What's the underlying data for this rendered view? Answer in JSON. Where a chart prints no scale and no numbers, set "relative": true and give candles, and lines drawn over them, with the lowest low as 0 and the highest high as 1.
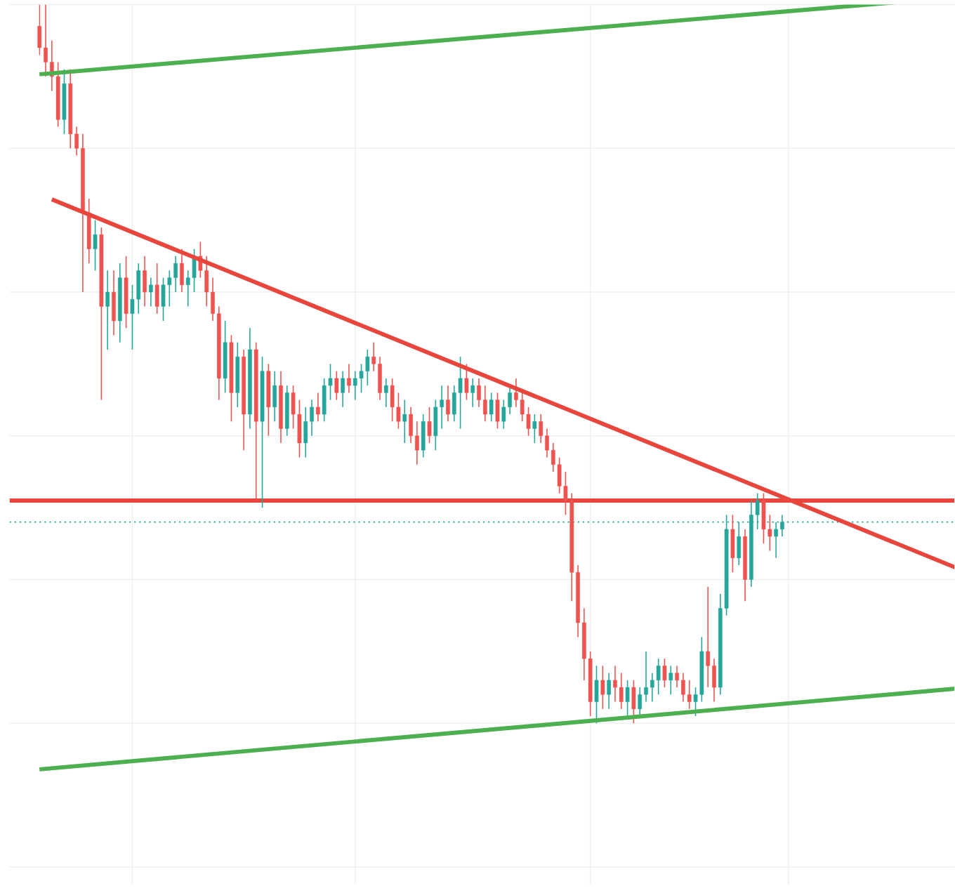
{
  "chart_data": {
    "type": "candlestick",
    "relative": true,
    "grid": true,
    "tick_labels": false,
    "categories": [
      null,
      null,
      null,
      null,
      null,
      null,
      null,
      null,
      null,
      null,
      null,
      null,
      null,
      null,
      null,
      null,
      null,
      null,
      null,
      null,
      null,
      null,
      null,
      null,
      null,
      null,
      null,
      null,
      null,
      null,
      null,
      null,
      null,
      null,
      null,
      null,
      null,
      null,
      null,
      null,
      null,
      null,
      null,
      null,
      null,
      null,
      null,
      null,
      null,
      null,
      null,
      null,
      null,
      null,
      null,
      null,
      null,
      null,
      null,
      null,
      null,
      null,
      null,
      null,
      null,
      null,
      null,
      null,
      null,
      null,
      null,
      null,
      null,
      null,
      null,
      null,
      null,
      null,
      null,
      null,
      null,
      null,
      null,
      null,
      null,
      null,
      null,
      null,
      null,
      null,
      null,
      null,
      null,
      null,
      null,
      null,
      null,
      null,
      null,
      null,
      null,
      null,
      null,
      null,
      null,
      null,
      null,
      null,
      null,
      null,
      null,
      null,
      null,
      null,
      null,
      null,
      null,
      null,
      null,
      null,
      null
    ],
    "ohlc": [
      [
        0.97,
        1.0,
        0.93,
        0.94
      ],
      [
        0.94,
        1.0,
        0.9,
        0.92
      ],
      [
        0.92,
        0.95,
        0.88,
        0.9
      ],
      [
        0.9,
        0.92,
        0.83,
        0.84
      ],
      [
        0.84,
        0.91,
        0.82,
        0.89
      ],
      [
        0.89,
        0.91,
        0.8,
        0.82
      ],
      [
        0.82,
        0.83,
        0.79,
        0.8
      ],
      [
        0.8,
        0.82,
        0.6,
        0.71
      ],
      [
        0.71,
        0.73,
        0.64,
        0.66
      ],
      [
        0.66,
        0.7,
        0.63,
        0.68
      ],
      [
        0.68,
        0.69,
        0.45,
        0.58
      ],
      [
        0.58,
        0.63,
        0.52,
        0.6
      ],
      [
        0.6,
        0.63,
        0.54,
        0.56
      ],
      [
        0.56,
        0.64,
        0.53,
        0.62
      ],
      [
        0.62,
        0.65,
        0.55,
        0.57
      ],
      [
        0.57,
        0.61,
        0.52,
        0.59
      ],
      [
        0.59,
        0.64,
        0.57,
        0.63
      ],
      [
        0.63,
        0.65,
        0.58,
        0.6
      ],
      [
        0.6,
        0.62,
        0.58,
        0.61
      ],
      [
        0.61,
        0.64,
        0.57,
        0.58
      ],
      [
        0.58,
        0.62,
        0.56,
        0.61
      ],
      [
        0.61,
        0.63,
        0.58,
        0.62
      ],
      [
        0.62,
        0.65,
        0.6,
        0.64
      ],
      [
        0.64,
        0.66,
        0.6,
        0.61
      ],
      [
        0.61,
        0.63,
        0.58,
        0.62
      ],
      [
        0.62,
        0.66,
        0.6,
        0.65
      ],
      [
        0.65,
        0.67,
        0.62,
        0.63
      ],
      [
        0.63,
        0.65,
        0.58,
        0.6
      ],
      [
        0.6,
        0.62,
        0.56,
        0.57
      ],
      [
        0.57,
        0.58,
        0.45,
        0.48
      ],
      [
        0.48,
        0.56,
        0.46,
        0.53
      ],
      [
        0.53,
        0.54,
        0.42,
        0.46
      ],
      [
        0.46,
        0.53,
        0.44,
        0.51
      ],
      [
        0.51,
        0.52,
        0.38,
        0.43
      ],
      [
        0.43,
        0.55,
        0.41,
        0.52
      ],
      [
        0.52,
        0.53,
        0.31,
        0.42
      ],
      [
        0.42,
        0.51,
        0.3,
        0.49
      ],
      [
        0.49,
        0.5,
        0.4,
        0.44
      ],
      [
        0.44,
        0.49,
        0.42,
        0.47
      ],
      [
        0.47,
        0.49,
        0.39,
        0.41
      ],
      [
        0.41,
        0.47,
        0.4,
        0.46
      ],
      [
        0.46,
        0.47,
        0.41,
        0.43
      ],
      [
        0.43,
        0.45,
        0.37,
        0.39
      ],
      [
        0.39,
        0.44,
        0.37,
        0.42
      ],
      [
        0.42,
        0.45,
        0.4,
        0.44
      ],
      [
        0.44,
        0.46,
        0.42,
        0.43
      ],
      [
        0.43,
        0.48,
        0.42,
        0.47
      ],
      [
        0.47,
        0.5,
        0.45,
        0.48
      ],
      [
        0.48,
        0.49,
        0.45,
        0.46
      ],
      [
        0.46,
        0.49,
        0.44,
        0.48
      ],
      [
        0.48,
        0.5,
        0.46,
        0.47
      ],
      [
        0.47,
        0.49,
        0.45,
        0.48
      ],
      [
        0.48,
        0.5,
        0.46,
        0.49
      ],
      [
        0.49,
        0.52,
        0.47,
        0.51
      ],
      [
        0.51,
        0.53,
        0.49,
        0.5
      ],
      [
        0.5,
        0.51,
        0.45,
        0.46
      ],
      [
        0.46,
        0.48,
        0.44,
        0.47
      ],
      [
        0.47,
        0.48,
        0.42,
        0.44
      ],
      [
        0.44,
        0.46,
        0.41,
        0.42
      ],
      [
        0.42,
        0.45,
        0.39,
        0.43
      ],
      [
        0.43,
        0.44,
        0.39,
        0.4
      ],
      [
        0.4,
        0.42,
        0.36,
        0.38
      ],
      [
        0.38,
        0.43,
        0.37,
        0.42
      ],
      [
        0.42,
        0.44,
        0.39,
        0.4
      ],
      [
        0.4,
        0.45,
        0.38,
        0.44
      ],
      [
        0.44,
        0.47,
        0.41,
        0.45
      ],
      [
        0.45,
        0.47,
        0.42,
        0.43
      ],
      [
        0.43,
        0.47,
        0.42,
        0.46
      ],
      [
        0.46,
        0.51,
        0.41,
        0.48
      ],
      [
        0.48,
        0.5,
        0.45,
        0.46
      ],
      [
        0.46,
        0.48,
        0.44,
        0.47
      ],
      [
        0.47,
        0.48,
        0.44,
        0.45
      ],
      [
        0.45,
        0.47,
        0.42,
        0.43
      ],
      [
        0.43,
        0.46,
        0.42,
        0.45
      ],
      [
        0.45,
        0.46,
        0.41,
        0.42
      ],
      [
        0.42,
        0.45,
        0.41,
        0.44
      ],
      [
        0.44,
        0.47,
        0.43,
        0.46
      ],
      [
        0.46,
        0.48,
        0.44,
        0.45
      ],
      [
        0.45,
        0.46,
        0.42,
        0.43
      ],
      [
        0.43,
        0.44,
        0.4,
        0.41
      ],
      [
        0.41,
        0.43,
        0.39,
        0.42
      ],
      [
        0.42,
        0.43,
        0.39,
        0.4
      ],
      [
        0.4,
        0.41,
        0.37,
        0.38
      ],
      [
        0.38,
        0.39,
        0.35,
        0.36
      ],
      [
        0.36,
        0.37,
        0.32,
        0.33
      ],
      [
        0.33,
        0.35,
        0.29,
        0.31
      ],
      [
        0.31,
        0.32,
        0.17,
        0.21
      ],
      [
        0.21,
        0.22,
        0.12,
        0.14
      ],
      [
        0.14,
        0.16,
        0.06,
        0.09
      ],
      [
        0.09,
        0.1,
        0.01,
        0.03
      ],
      [
        0.03,
        0.08,
        0.0,
        0.06
      ],
      [
        0.06,
        0.08,
        0.02,
        0.04
      ],
      [
        0.04,
        0.07,
        0.02,
        0.06
      ],
      [
        0.06,
        0.08,
        0.03,
        0.05
      ],
      [
        0.05,
        0.07,
        0.02,
        0.03
      ],
      [
        0.03,
        0.06,
        0.01,
        0.05
      ],
      [
        0.05,
        0.06,
        0.0,
        0.02
      ],
      [
        0.02,
        0.05,
        0.01,
        0.04
      ],
      [
        0.04,
        0.1,
        0.03,
        0.05
      ],
      [
        0.05,
        0.07,
        0.03,
        0.06
      ],
      [
        0.06,
        0.09,
        0.04,
        0.08
      ],
      [
        0.08,
        0.09,
        0.05,
        0.06
      ],
      [
        0.06,
        0.08,
        0.04,
        0.07
      ],
      [
        0.07,
        0.08,
        0.05,
        0.06
      ],
      [
        0.06,
        0.07,
        0.03,
        0.04
      ],
      [
        0.04,
        0.06,
        0.02,
        0.03
      ],
      [
        0.03,
        0.05,
        0.01,
        0.04
      ],
      [
        0.04,
        0.12,
        0.03,
        0.1
      ],
      [
        0.1,
        0.19,
        0.05,
        0.08
      ],
      [
        0.08,
        0.09,
        0.03,
        0.05
      ],
      [
        0.05,
        0.18,
        0.04,
        0.16
      ],
      [
        0.16,
        0.29,
        0.15,
        0.27
      ],
      [
        0.27,
        0.29,
        0.21,
        0.23
      ],
      [
        0.23,
        0.28,
        0.22,
        0.26
      ],
      [
        0.26,
        0.27,
        0.17,
        0.2
      ],
      [
        0.2,
        0.31,
        0.19,
        0.29
      ],
      [
        0.29,
        0.32,
        0.27,
        0.31
      ],
      [
        0.31,
        0.32,
        0.25,
        0.27
      ],
      [
        0.27,
        0.29,
        0.24,
        0.26
      ],
      [
        0.26,
        0.28,
        0.23,
        0.27
      ],
      [
        0.27,
        0.29,
        0.26,
        0.28
      ]
    ],
    "series": [
      {
        "type": "line",
        "color": "#4caf50",
        "values": [
          0.903,
          null,
          null,
          null,
          null,
          null,
          null,
          null,
          null,
          null,
          null,
          null,
          null,
          null,
          null,
          null,
          null,
          null,
          null,
          null,
          null,
          null,
          null,
          null,
          null,
          null,
          null,
          null,
          null,
          null,
          null,
          null,
          null,
          null,
          null,
          null,
          null,
          null,
          null,
          null,
          null,
          null,
          null,
          null,
          null,
          null,
          null,
          null,
          null,
          null,
          null,
          null,
          null,
          null,
          null,
          null,
          null,
          null,
          null,
          null,
          null,
          null,
          null,
          null,
          null,
          null,
          null,
          null,
          null,
          null,
          null,
          null,
          null,
          null,
          null,
          null,
          null,
          null,
          null,
          null,
          null,
          null,
          null,
          null,
          null,
          null,
          null,
          null,
          null,
          null,
          null,
          null,
          null,
          null,
          null,
          null,
          null,
          null,
          null,
          null,
          null,
          null,
          null,
          null,
          null,
          null,
          null,
          null,
          null,
          null,
          null,
          null,
          null,
          null,
          null,
          null,
          null,
          null,
          null,
          null,
          0.99
        ]
      },
      {
        "type": "line",
        "color": "#4caf50",
        "values": [
          -0.064,
          null,
          null,
          null,
          null,
          null,
          null,
          null,
          null,
          null,
          null,
          null,
          null,
          null,
          null,
          null,
          null,
          null,
          null,
          null,
          null,
          null,
          null,
          null,
          null,
          null,
          null,
          null,
          null,
          null,
          null,
          null,
          null,
          null,
          null,
          null,
          null,
          null,
          null,
          null,
          null,
          null,
          null,
          null,
          null,
          null,
          null,
          null,
          null,
          null,
          null,
          null,
          null,
          null,
          null,
          null,
          null,
          null,
          null,
          null,
          null,
          null,
          null,
          null,
          null,
          null,
          null,
          null,
          null,
          null,
          null,
          null,
          null,
          null,
          null,
          null,
          null,
          null,
          null,
          null,
          null,
          null,
          null,
          null,
          null,
          null,
          null,
          null,
          null,
          null,
          null,
          null,
          null,
          null,
          null,
          null,
          null,
          null,
          null,
          null,
          null,
          null,
          null,
          null,
          null,
          null,
          null,
          null,
          null,
          null,
          null,
          null,
          null,
          null,
          null,
          null,
          null,
          null,
          null,
          null,
          0.027
        ]
      },
      {
        "type": "line",
        "color": "#e8453c",
        "values": [
          null,
          null,
          0.729,
          null,
          null,
          null,
          null,
          null,
          null,
          null,
          null,
          null,
          null,
          null,
          null,
          null,
          null,
          null,
          null,
          null,
          null,
          null,
          null,
          null,
          null,
          null,
          null,
          null,
          null,
          null,
          null,
          null,
          null,
          null,
          null,
          null,
          null,
          null,
          null,
          null,
          null,
          null,
          null,
          null,
          null,
          null,
          null,
          null,
          null,
          null,
          null,
          null,
          null,
          null,
          null,
          null,
          null,
          null,
          null,
          null,
          null,
          null,
          null,
          null,
          null,
          null,
          null,
          null,
          null,
          null,
          null,
          null,
          null,
          null,
          null,
          null,
          null,
          null,
          null,
          null,
          null,
          null,
          null,
          null,
          null,
          null,
          null,
          null,
          null,
          null,
          null,
          null,
          null,
          null,
          null,
          null,
          null,
          null,
          null,
          null,
          null,
          null,
          null,
          null,
          null,
          null,
          null,
          null,
          null,
          null,
          null,
          null,
          null,
          null,
          null,
          null,
          null,
          null,
          null,
          null,
          0.315
        ]
      }
    ],
    "ref_lines": [
      {
        "axis": "y",
        "value": 0.31,
        "color": "#e8453c",
        "line_style": "solid"
      },
      {
        "axis": "y",
        "value": 0.28,
        "color": "#26a69a",
        "line_style": "dotted"
      }
    ]
  }
}
